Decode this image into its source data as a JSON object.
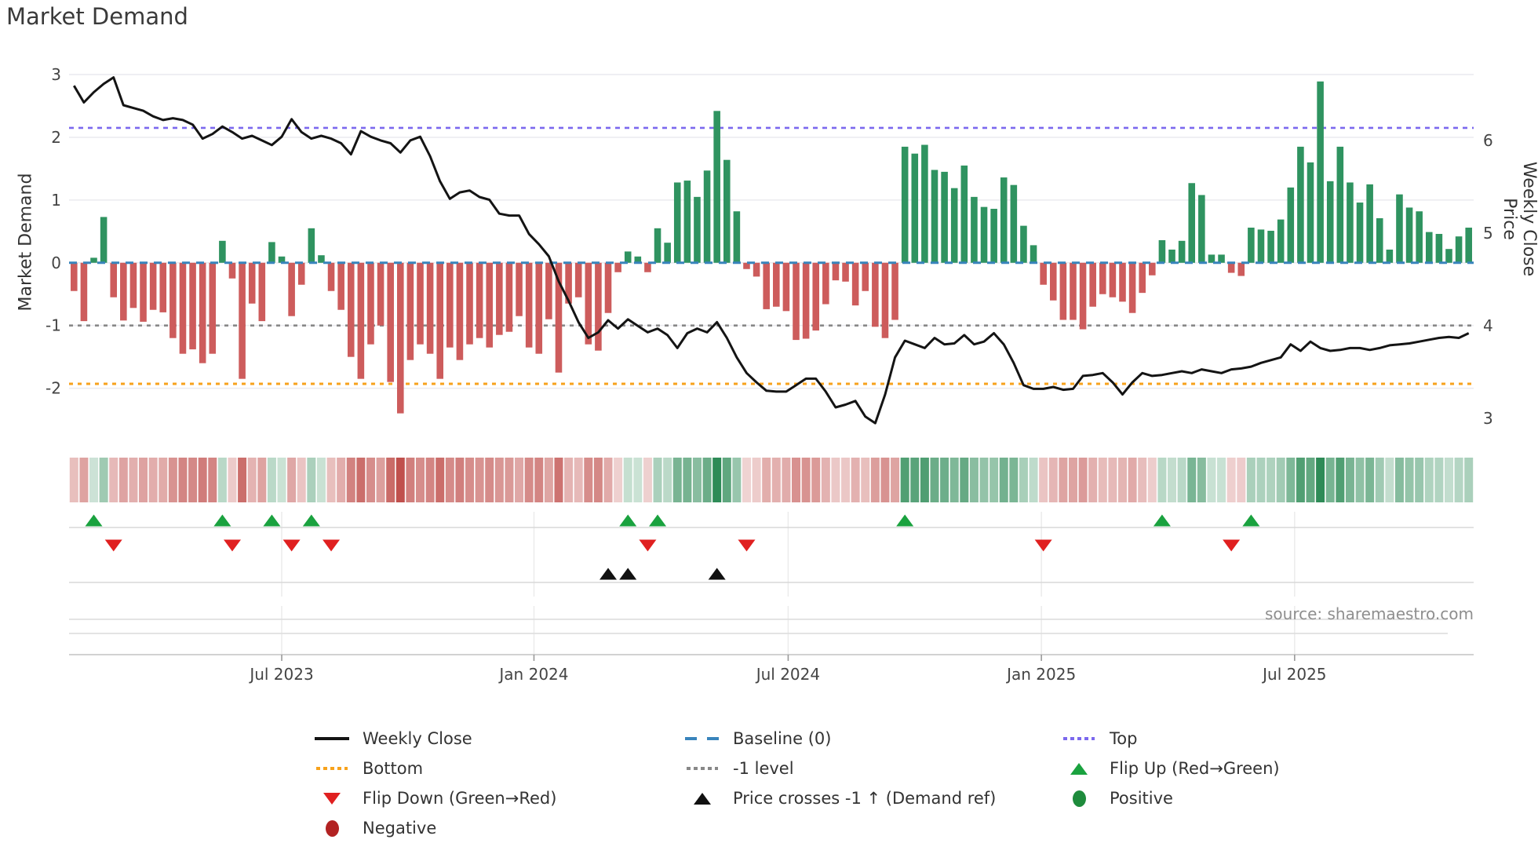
{
  "title": "Market Demand",
  "axes": {
    "left_title": "Market Demand",
    "right_title": "Weekly Close Price",
    "left_ticks": [
      {
        "label": "3",
        "value": 3
      },
      {
        "label": "2",
        "value": 2
      },
      {
        "label": "1",
        "value": 1
      },
      {
        "label": "0",
        "value": 0
      },
      {
        "label": "-1",
        "value": -1
      },
      {
        "label": "-2",
        "value": -2
      }
    ],
    "right_ticks": [
      {
        "label": "6",
        "price": 6
      },
      {
        "label": "5",
        "price": 5
      },
      {
        "label": "4",
        "price": 4
      },
      {
        "label": "3",
        "price": 3
      }
    ],
    "x_ticks": [
      {
        "label": "Jul 2023",
        "week": 21
      },
      {
        "label": "Jan 2024",
        "week": 46.5
      },
      {
        "label": "Jul 2024",
        "week": 72.2
      },
      {
        "label": "Jan 2025",
        "week": 97.8
      },
      {
        "label": "Jul 2025",
        "week": 123.4
      }
    ]
  },
  "source_text": "source: sharemaestro.com",
  "colors": {
    "bar_positive": "#2f9360",
    "bar_negative": "#cd5c5c",
    "weekly_close_line": "#141414",
    "baseline": "#3984bc",
    "top_line": "#7b68ee",
    "bottom_line": "#f7a21c",
    "minus_one_line": "#888888",
    "flip_up_marker": "#1aa23f",
    "flip_down_marker": "#e02020",
    "price_cross_marker": "#111111",
    "positive_dot": "#1e8b3c",
    "negative_dot": "#b22222",
    "grid": "#ececf0",
    "panel_line": "#d8d8d8",
    "axis_line": "#cccccc",
    "tick_text": "#444444"
  },
  "legend": {
    "columns": [
      [
        {
          "type": "line",
          "color": "#141414",
          "label": "Weekly Close"
        },
        {
          "type": "dot-line",
          "color": "#f7a21c",
          "label": "Bottom"
        },
        {
          "type": "tri-down",
          "color": "#e02020",
          "label": "Flip Down (Green→Red)"
        },
        {
          "type": "circle",
          "color": "#b22222",
          "label": "Negative"
        }
      ],
      [
        {
          "type": "dash-line",
          "color": "#3984bc",
          "label": "Baseline (0)"
        },
        {
          "type": "dot-line",
          "color": "#888888",
          "label": "-1 level"
        },
        {
          "type": "tri-up",
          "color": "#111111",
          "label": "Price crosses -1 ↑ (Demand ref)"
        }
      ],
      [
        {
          "type": "dot-line",
          "color": "#7b68ee",
          "label": "Top"
        },
        {
          "type": "tri-up",
          "color": "#1aa23f",
          "label": "Flip Up (Red→Green)"
        },
        {
          "type": "circle",
          "color": "#1e8b3c",
          "label": "Positive"
        }
      ]
    ]
  },
  "chart_data": {
    "type": "bar",
    "title": "Market Demand",
    "ylabel": "Market Demand",
    "ylabel_right": "Weekly Close Price",
    "ylim_left": [
      -2.63,
      3.25
    ],
    "ylim_right": [
      2.9,
      6.88
    ],
    "grid": "horizontal",
    "legend_position": "bottom",
    "x_unit": "week",
    "x_tick_labels": [
      "Jul 2023",
      "Jan 2024",
      "Jul 2024",
      "Jan 2025",
      "Jul 2025"
    ],
    "reference_lines": [
      {
        "name": "Top",
        "value": 2.15,
        "style": "dotted",
        "color": "#7b68ee"
      },
      {
        "name": "Baseline (0)",
        "value": 0,
        "style": "dashed",
        "color": "#3984bc"
      },
      {
        "name": "-1 level",
        "value": -1,
        "style": "dotted",
        "color": "#888888"
      },
      {
        "name": "Bottom",
        "value": -1.93,
        "style": "dotted",
        "color": "#f7a21c"
      }
    ],
    "series": [
      {
        "name": "Market Demand",
        "type": "bar",
        "axis": "left",
        "values": [
          -0.45,
          -0.93,
          0.08,
          0.73,
          -0.55,
          -0.92,
          -0.72,
          -0.94,
          -0.75,
          -0.79,
          -1.2,
          -1.45,
          -1.38,
          -1.6,
          -1.45,
          0.35,
          -0.25,
          -1.85,
          -0.65,
          -0.93,
          0.33,
          0.1,
          -0.85,
          -0.35,
          0.55,
          0.12,
          -0.45,
          -0.75,
          -1.5,
          -1.85,
          -1.3,
          -1.0,
          -1.9,
          -2.4,
          -1.55,
          -1.3,
          -1.45,
          -1.85,
          -1.35,
          -1.55,
          -1.3,
          -1.2,
          -1.35,
          -1.15,
          -1.1,
          -0.85,
          -1.35,
          -1.45,
          -0.9,
          -1.75,
          -0.65,
          -0.55,
          -1.3,
          -1.4,
          -0.8,
          -0.15,
          0.18,
          0.1,
          -0.15,
          0.55,
          0.32,
          1.28,
          1.31,
          1.05,
          1.47,
          2.42,
          1.64,
          0.82,
          -0.1,
          -0.22,
          -0.74,
          -0.7,
          -0.77,
          -1.23,
          -1.21,
          -1.08,
          -0.66,
          -0.28,
          -0.3,
          -0.68,
          -0.45,
          -1.02,
          -1.2,
          -0.91,
          1.85,
          1.74,
          1.88,
          1.48,
          1.45,
          1.19,
          1.55,
          1.05,
          0.89,
          0.86,
          1.36,
          1.24,
          0.59,
          0.28,
          -0.35,
          -0.6,
          -0.91,
          -0.91,
          -1.06,
          -0.7,
          -0.5,
          -0.55,
          -0.62,
          -0.8,
          -0.48,
          -0.2,
          0.36,
          0.21,
          0.35,
          1.27,
          1.08,
          0.13,
          0.13,
          -0.16,
          -0.21,
          0.56,
          0.53,
          0.51,
          0.69,
          1.2,
          1.85,
          1.6,
          2.89,
          1.3,
          1.85,
          1.28,
          0.96,
          1.25,
          0.71,
          0.21,
          1.09,
          0.88,
          0.82,
          0.49,
          0.46,
          0.22,
          0.42,
          0.56
        ]
      },
      {
        "name": "Weekly Close",
        "type": "line",
        "axis": "right",
        "values": [
          6.59,
          6.41,
          6.52,
          6.61,
          6.68,
          6.38,
          6.35,
          6.32,
          6.26,
          6.22,
          6.24,
          6.22,
          6.17,
          6.02,
          6.07,
          6.15,
          6.09,
          6.02,
          6.05,
          6.0,
          5.95,
          6.04,
          6.23,
          6.09,
          6.02,
          6.05,
          6.02,
          5.97,
          5.85,
          6.1,
          6.04,
          6.0,
          5.97,
          5.87,
          6.0,
          6.04,
          5.83,
          5.56,
          5.37,
          5.44,
          5.46,
          5.39,
          5.36,
          5.21,
          5.19,
          5.19,
          4.99,
          4.88,
          4.75,
          4.48,
          4.27,
          4.04,
          3.87,
          3.93,
          4.06,
          3.97,
          4.07,
          4.0,
          3.93,
          3.97,
          3.9,
          3.76,
          3.92,
          3.97,
          3.93,
          4.04,
          3.87,
          3.66,
          3.49,
          3.39,
          3.3,
          3.29,
          3.29,
          3.36,
          3.43,
          3.43,
          3.29,
          3.12,
          3.15,
          3.19,
          3.02,
          2.95,
          3.26,
          3.66,
          3.84,
          3.8,
          3.76,
          3.87,
          3.8,
          3.81,
          3.9,
          3.8,
          3.83,
          3.92,
          3.8,
          3.6,
          3.36,
          3.32,
          3.32,
          3.34,
          3.31,
          3.32,
          3.46,
          3.47,
          3.49,
          3.39,
          3.26,
          3.39,
          3.49,
          3.46,
          3.47,
          3.49,
          3.51,
          3.49,
          3.53,
          3.51,
          3.49,
          3.53,
          3.54,
          3.56,
          3.6,
          3.63,
          3.66,
          3.8,
          3.73,
          3.83,
          3.76,
          3.73,
          3.74,
          3.76,
          3.76,
          3.74,
          3.76,
          3.79,
          3.8,
          3.81,
          3.83,
          3.85,
          3.87,
          3.88,
          3.87,
          3.92
        ]
      }
    ],
    "markers": {
      "flip_up_weeks": [
        2,
        15,
        20,
        24,
        56,
        59,
        84,
        110,
        119
      ],
      "flip_down_weeks": [
        4,
        16,
        22,
        26,
        58,
        68,
        98,
        117
      ],
      "price_cross_weeks": [
        54,
        56,
        65
      ]
    },
    "heatmap": {
      "note": "strip colored by weekly demand value: red negative, green positive, intensity by magnitude"
    }
  }
}
